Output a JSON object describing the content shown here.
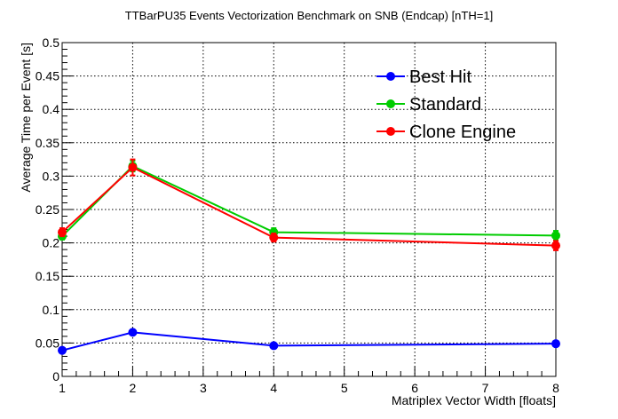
{
  "chart_data": {
    "type": "line",
    "title": "TTBarPU35 Events Vectorization Benchmark on SNB (Endcap) [nTH=1]",
    "xlabel": "Matriplex Vector Width [floats]",
    "ylabel": "Average Time per Event [s]",
    "xlim": [
      1,
      8
    ],
    "ylim": [
      0,
      0.5
    ],
    "x_ticks": [
      "1",
      "2",
      "3",
      "4",
      "5",
      "6",
      "7",
      "8"
    ],
    "y_ticks": [
      "0",
      "0.05",
      "0.1",
      "0.15",
      "0.2",
      "0.25",
      "0.3",
      "0.35",
      "0.4",
      "0.45",
      "0.5"
    ],
    "grid": true,
    "legend_position": "top-right",
    "x": [
      1,
      2,
      4,
      8
    ],
    "series": [
      {
        "name": "Best Hit",
        "color": "#0000ff",
        "values": [
          0.039,
          0.066,
          0.046,
          0.049
        ],
        "errors": [
          0.002,
          0.003,
          0.002,
          0.002
        ]
      },
      {
        "name": "Standard",
        "color": "#00cc00",
        "values": [
          0.21,
          0.315,
          0.216,
          0.211
        ],
        "errors": [
          0.005,
          0.008,
          0.006,
          0.007
        ]
      },
      {
        "name": "Clone Engine",
        "color": "#ff0000",
        "values": [
          0.216,
          0.313,
          0.208,
          0.196
        ],
        "errors": [
          0.006,
          0.012,
          0.006,
          0.007
        ]
      }
    ]
  }
}
